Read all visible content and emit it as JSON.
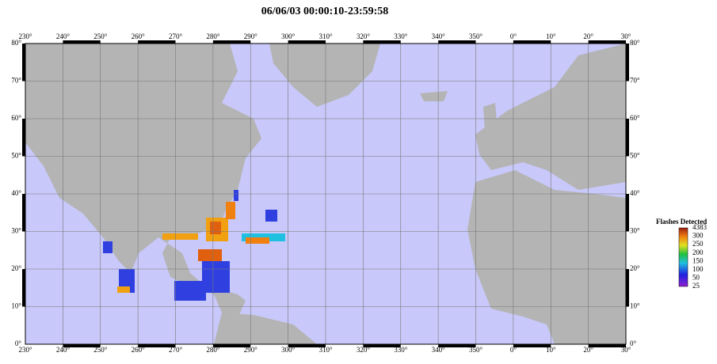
{
  "title": "06/06/03 00:00:10-23:59:58",
  "map": {
    "lon_ticks": [
      "230°",
      "240°",
      "250°",
      "260°",
      "270°",
      "280°",
      "290°",
      "300°",
      "310°",
      "320°",
      "330°",
      "340°",
      "350°",
      "0°",
      "10°",
      "20°",
      "30°"
    ],
    "lat_ticks": [
      "0°",
      "10°",
      "20°",
      "30°",
      "40°",
      "50°",
      "60°",
      "70°",
      "80°"
    ]
  },
  "legend": {
    "title": "Flashes Detected",
    "labels": [
      "4383",
      "300",
      "250",
      "200",
      "150",
      "100",
      "50",
      "25"
    ]
  }
}
